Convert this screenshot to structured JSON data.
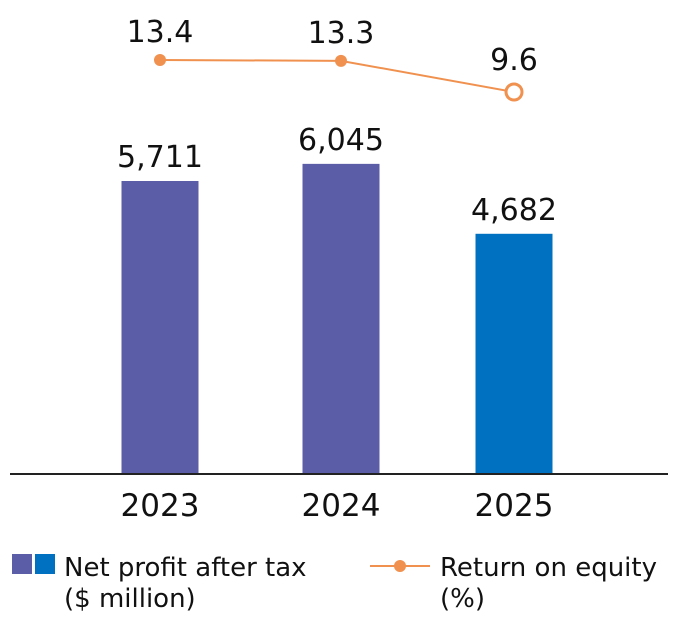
{
  "chart_data": {
    "type": "bar",
    "title": "",
    "xlabel": "",
    "ylabel": "",
    "categories": [
      "2023",
      "2024",
      "2025"
    ],
    "series": [
      {
        "name": "Net profit after tax ($ million)",
        "type": "bar",
        "values": [
          5711,
          6045,
          4682
        ],
        "labels": [
          "5,711",
          "6,045",
          "4,682"
        ],
        "colors": [
          "#5b5ea6",
          "#5b5ea6",
          "#0070c0"
        ]
      },
      {
        "name": "Return on equity (%)",
        "type": "line",
        "values": [
          13.4,
          13.3,
          9.6
        ],
        "labels": [
          "13.4",
          "13.3",
          "9.6"
        ],
        "color": "#f0914f",
        "markers": [
          "filled",
          "filled",
          "hollow"
        ]
      }
    ],
    "grid": false,
    "legend": {
      "placement": "bottom",
      "items": [
        {
          "line1": "Net profit after tax",
          "line2": "($ million)",
          "swatches": [
            "#5b5ea6",
            "#0070c0"
          ]
        },
        {
          "line1": "Return on equity",
          "line2": "(%)",
          "color": "#f0914f"
        }
      ]
    }
  }
}
